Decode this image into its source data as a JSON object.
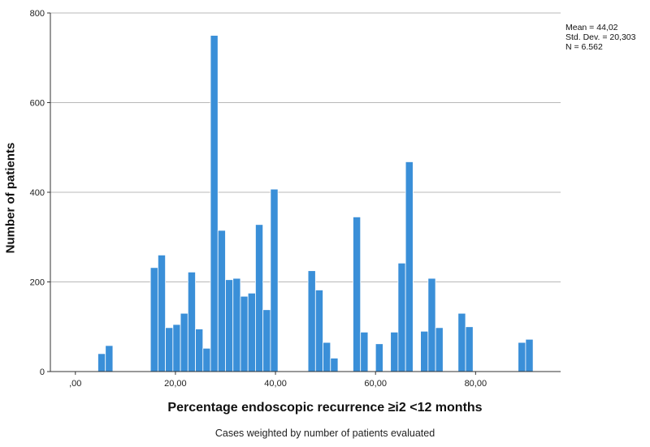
{
  "chart_data": {
    "type": "bar",
    "title": "",
    "xlabel": "Percentage endoscopic recurrence ≥i2 <12 months",
    "ylabel": "Number of patients",
    "footnote": "Cases weighted by number of patients evaluated",
    "xlim": [
      -5,
      97
    ],
    "ylim": [
      0,
      800
    ],
    "x_ticks": [
      {
        "value": 0,
        "label": ",00"
      },
      {
        "value": 20,
        "label": "20,00"
      },
      {
        "value": 40,
        "label": "40,00"
      },
      {
        "value": 60,
        "label": "60,00"
      },
      {
        "value": 80,
        "label": "80,00"
      }
    ],
    "y_ticks": [
      {
        "value": 0,
        "label": "0"
      },
      {
        "value": 200,
        "label": "200"
      },
      {
        "value": 400,
        "label": "400"
      },
      {
        "value": 600,
        "label": "600"
      },
      {
        "value": 800,
        "label": "800"
      }
    ],
    "grid": true,
    "bar_color": "#3a8fd8",
    "bin_width": 1.5,
    "bins": [
      {
        "x": 5.25,
        "value": 40
      },
      {
        "x": 6.75,
        "value": 58
      },
      {
        "x": 15.75,
        "value": 232
      },
      {
        "x": 17.25,
        "value": 260
      },
      {
        "x": 18.75,
        "value": 98
      },
      {
        "x": 20.25,
        "value": 105
      },
      {
        "x": 21.75,
        "value": 130
      },
      {
        "x": 23.25,
        "value": 222
      },
      {
        "x": 24.75,
        "value": 95
      },
      {
        "x": 26.25,
        "value": 52
      },
      {
        "x": 27.75,
        "value": 750
      },
      {
        "x": 29.25,
        "value": 315
      },
      {
        "x": 30.75,
        "value": 205
      },
      {
        "x": 32.25,
        "value": 208
      },
      {
        "x": 33.75,
        "value": 168
      },
      {
        "x": 35.25,
        "value": 175
      },
      {
        "x": 36.75,
        "value": 328
      },
      {
        "x": 38.25,
        "value": 138
      },
      {
        "x": 39.75,
        "value": 407
      },
      {
        "x": 47.25,
        "value": 225
      },
      {
        "x": 48.75,
        "value": 182
      },
      {
        "x": 50.25,
        "value": 65
      },
      {
        "x": 51.75,
        "value": 30
      },
      {
        "x": 56.25,
        "value": 345
      },
      {
        "x": 57.75,
        "value": 88
      },
      {
        "x": 60.75,
        "value": 62
      },
      {
        "x": 63.75,
        "value": 88
      },
      {
        "x": 65.25,
        "value": 242
      },
      {
        "x": 66.75,
        "value": 468
      },
      {
        "x": 69.75,
        "value": 90
      },
      {
        "x": 71.25,
        "value": 208
      },
      {
        "x": 72.75,
        "value": 98
      },
      {
        "x": 77.25,
        "value": 130
      },
      {
        "x": 78.75,
        "value": 100
      },
      {
        "x": 89.25,
        "value": 65
      },
      {
        "x": 90.75,
        "value": 72
      }
    ],
    "stats": {
      "mean": "Mean = 44,02",
      "std_dev": "Std. Dev. = 20,303",
      "n": "N = 6.562"
    }
  }
}
